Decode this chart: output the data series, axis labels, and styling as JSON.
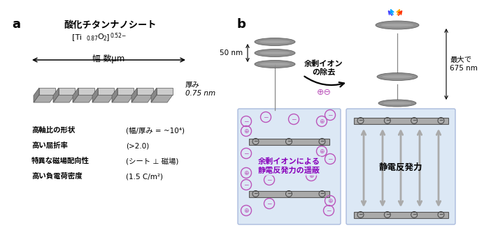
{
  "panel_a_label": "a",
  "panel_b_label": "b",
  "title_ja": "酸化チタンナノシート",
  "width_label": "幅 数μm",
  "thickness_label": "厚み\n0.75 nm",
  "prop1_left": "高軸比の形状",
  "prop1_right": "(幅/厚み = ~10⁴)",
  "prop2_left": "高い屈折率",
  "prop2_right": "(>2.0)",
  "prop3_left": "特異な磁場配向性",
  "prop3_right": "(シート ⊥ 磁場)",
  "prop4_left": "高い負電荷密度",
  "prop4_right": "(1.5 C/m²)",
  "arrow_label_top": "余剰イオン\nの除去",
  "nm50_label": "50 nm",
  "nm675_label": "最大で\n675 nm",
  "left_box_label": "余剰イオンによる\n静電反発力の遥蔽",
  "right_box_label": "静電反発力",
  "box_bg_color": "#dce8f5",
  "rainbow_colors": [
    "#4444ff",
    "#00aaff",
    "#00cc00",
    "#aacc00",
    "#ffee00",
    "#ffaa00",
    "#ff3300"
  ]
}
